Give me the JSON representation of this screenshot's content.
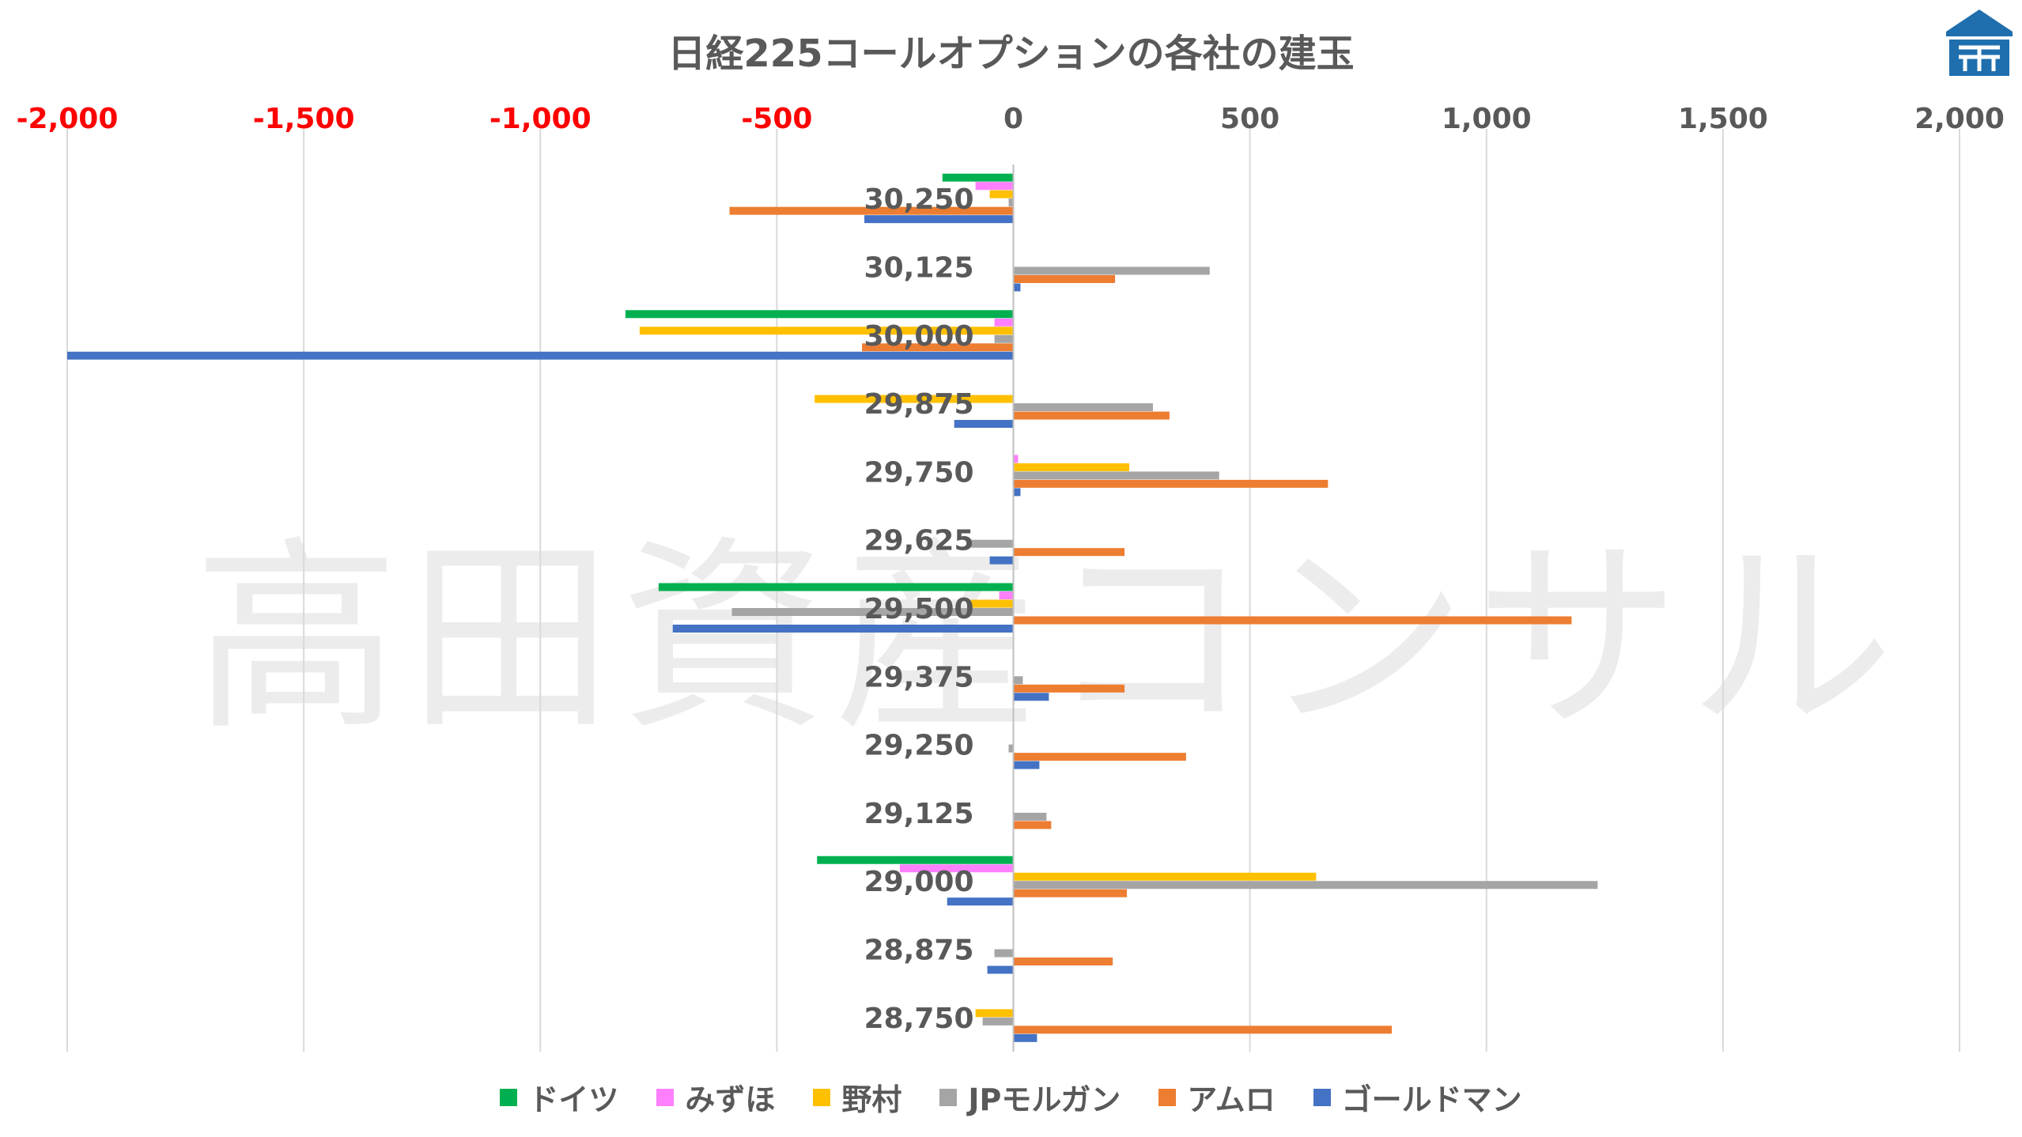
{
  "chart_data": {
    "type": "bar",
    "orientation": "horizontal",
    "title": "日経225コールオプションの各社の建玉",
    "x_axis": {
      "range": [
        -2000,
        2000
      ],
      "ticks": [
        -2000,
        -1500,
        -1000,
        -500,
        0,
        500,
        1000,
        1500,
        2000
      ],
      "tick_labels": [
        "-2,000",
        "-1,500",
        "-1,000",
        "-500",
        "0",
        "500",
        "1,000",
        "1,500",
        "2,000"
      ],
      "position": "top",
      "negative_color": "#ff0000",
      "positive_color": "#595959"
    },
    "grid": true,
    "legend_position": "bottom",
    "categories": [
      "30,250",
      "30,125",
      "30,000",
      "29,875",
      "29,750",
      "29,625",
      "29,500",
      "29,375",
      "29,250",
      "29,125",
      "29,000",
      "28,875",
      "28,750"
    ],
    "series": [
      {
        "name": "ドイツ",
        "color": "#00b050",
        "values": [
          -150,
          0,
          -820,
          0,
          0,
          0,
          -750,
          0,
          0,
          0,
          -415,
          0,
          0
        ]
      },
      {
        "name": "みずほ",
        "color": "#ff80ff",
        "values": [
          -80,
          0,
          -40,
          0,
          10,
          0,
          -30,
          0,
          0,
          0,
          -240,
          0,
          0
        ]
      },
      {
        "name": "野村",
        "color": "#ffc000",
        "values": [
          -50,
          0,
          -790,
          -420,
          245,
          0,
          -90,
          0,
          0,
          0,
          640,
          0,
          -80
        ]
      },
      {
        "name": "JPモルガン",
        "color": "#a5a5a5",
        "values": [
          -10,
          415,
          -40,
          295,
          435,
          -90,
          -595,
          20,
          -10,
          70,
          1235,
          -40,
          -65
        ]
      },
      {
        "name": "アムロ",
        "color": "#ed7d31",
        "values": [
          -600,
          215,
          -320,
          330,
          665,
          235,
          1180,
          235,
          365,
          80,
          240,
          210,
          800
        ]
      },
      {
        "name": "ゴールドマン",
        "color": "#4472c4",
        "values": [
          -315,
          15,
          -2000,
          -125,
          15,
          -50,
          -720,
          75,
          55,
          0,
          -140,
          -55,
          50
        ]
      }
    ]
  },
  "watermark": "高田資産コンサル",
  "logo": {
    "icon": "building-logo-icon",
    "color": "#1f6fae"
  }
}
